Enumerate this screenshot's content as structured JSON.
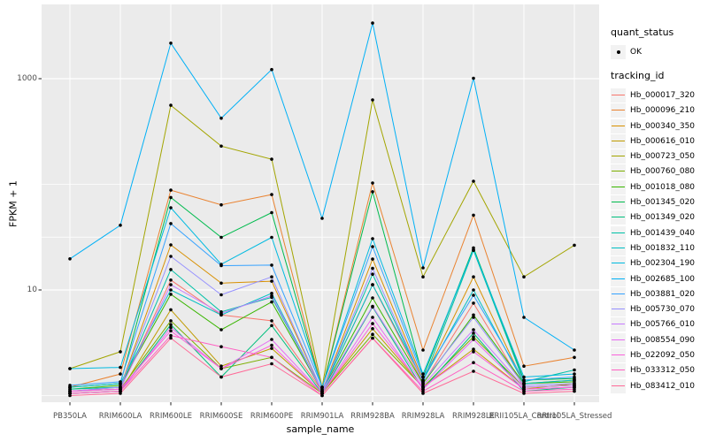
{
  "chart_data": {
    "type": "line",
    "title": "",
    "xlabel": "sample_name",
    "ylabel": "FPKM + 1",
    "y_scale": "log10",
    "ylim": [
      1,
      3800
    ],
    "y_ticks": [
      10,
      1000
    ],
    "y_tick_labels": [
      "10",
      "1000"
    ],
    "grid_minor_values": [
      1,
      31.62,
      100
    ],
    "grid": "on",
    "legend_position": "right",
    "panel_bg": "#EBEBEB",
    "grid_color": "#FFFFFF",
    "point_color": "#000000",
    "tick_color": "#333333",
    "categories": [
      "PB350LA",
      "RRIM600LA",
      "RRIM600LE",
      "RRIM600SE",
      "RRIM600PE",
      "RRIM901LA",
      "RRIM928BA",
      "RRIM928LA",
      "RRIM928LE",
      "RRII105LA_Control",
      "RRII105LA_Stressed"
    ],
    "series": [
      {
        "name": "Hb_000017_320",
        "color": "#F8766D",
        "values": [
          1.1,
          1.15,
          12.4,
          5.8,
          5.1,
          1.1,
          11.2,
          1.3,
          7.5,
          1.2,
          1.25
        ]
      },
      {
        "name": "Hb_000096_210",
        "color": "#EA8331",
        "values": [
          1.2,
          1.6,
          88,
          64,
          80,
          1.15,
          103,
          2.7,
          51,
          1.9,
          2.3
        ]
      },
      {
        "name": "Hb_000340_350",
        "color": "#D89000",
        "values": [
          1.1,
          1.2,
          26.7,
          11.6,
          12.1,
          1.1,
          19.6,
          1.4,
          13.3,
          1.3,
          1.4
        ]
      },
      {
        "name": "Hb_000616_010",
        "color": "#C09B00",
        "values": [
          1.05,
          1.1,
          6.5,
          1.9,
          2.8,
          1.05,
          4.3,
          1.2,
          2.75,
          1.15,
          1.3
        ]
      },
      {
        "name": "Hb_000723_050",
        "color": "#A3A500",
        "values": [
          1.8,
          2.6,
          560,
          230,
          173,
          1.2,
          630,
          13.3,
          107,
          13.3,
          26.5
        ]
      },
      {
        "name": "Hb_000760_080",
        "color": "#7CAE00",
        "values": [
          1.1,
          1.15,
          5.1,
          1.8,
          2.3,
          1.05,
          3.8,
          1.2,
          3.6,
          1.2,
          1.25
        ]
      },
      {
        "name": "Hb_001018_080",
        "color": "#39B600",
        "values": [
          1.15,
          1.25,
          9.1,
          4.2,
          7.7,
          1.1,
          8.4,
          1.3,
          5.8,
          1.3,
          1.35
        ]
      },
      {
        "name": "Hb_001345_020",
        "color": "#00BB4E",
        "values": [
          1.2,
          1.3,
          75,
          31.5,
          54,
          1.15,
          85,
          1.5,
          25,
          1.4,
          1.45
        ]
      },
      {
        "name": "Hb_001349_020",
        "color": "#00BF7D",
        "values": [
          1.05,
          1.1,
          4.7,
          1.5,
          4.6,
          1.05,
          6.9,
          1.15,
          3.9,
          1.1,
          1.2
        ]
      },
      {
        "name": "Hb_001439_040",
        "color": "#00C1A7",
        "values": [
          1.15,
          1.2,
          15.6,
          6.2,
          8.5,
          1.1,
          14.1,
          1.35,
          23.7,
          1.35,
          1.75
        ]
      },
      {
        "name": "Hb_001832_110",
        "color": "#00BFC4",
        "values": [
          1.2,
          1.3,
          10,
          5.8,
          9.3,
          1.1,
          11.2,
          1.4,
          10,
          1.3,
          1.4
        ]
      },
      {
        "name": "Hb_002304_190",
        "color": "#00BAE0",
        "values": [
          1.8,
          1.85,
          60,
          17.5,
          31.5,
          1.2,
          30.6,
          1.6,
          24,
          1.5,
          1.6
        ]
      },
      {
        "name": "Hb_002685_100",
        "color": "#00B0F6",
        "values": [
          19.7,
          41,
          2170,
          423,
          1220,
          47.6,
          3360,
          16.2,
          1010,
          5.5,
          2.7
        ]
      },
      {
        "name": "Hb_003881_020",
        "color": "#35A2FF",
        "values": [
          1.25,
          1.35,
          42.5,
          17,
          17.2,
          1.2,
          25.7,
          1.5,
          8.9,
          1.4,
          1.5
        ]
      },
      {
        "name": "Hb_005730_070",
        "color": "#9590FF",
        "values": [
          1.1,
          1.2,
          20.8,
          9.0,
          13.3,
          1.1,
          16.0,
          1.35,
          5.5,
          1.25,
          1.3
        ]
      },
      {
        "name": "Hb_005766_010",
        "color": "#C77CFF",
        "values": [
          1.1,
          1.15,
          11.2,
          6.0,
          8.8,
          1.1,
          7.0,
          1.25,
          4.2,
          1.2,
          1.25
        ]
      },
      {
        "name": "Hb_008554_090",
        "color": "#E76BF3",
        "values": [
          1.05,
          1.1,
          4.4,
          1.8,
          3.4,
          1.05,
          5.5,
          1.15,
          3.4,
          1.15,
          1.2
        ]
      },
      {
        "name": "Hb_022092_050",
        "color": "#FA62DB",
        "values": [
          1.1,
          1.15,
          4.1,
          1.8,
          3.0,
          1.05,
          4.8,
          1.2,
          2.6,
          1.15,
          1.2
        ]
      },
      {
        "name": "Hb_033312_050",
        "color": "#FF61C3",
        "values": [
          1.05,
          1.1,
          3.7,
          2.9,
          2.3,
          1.0,
          3.5,
          1.1,
          2.05,
          1.1,
          1.15
        ]
      },
      {
        "name": "Hb_083412_010",
        "color": "#FF6A98",
        "values": [
          1.0,
          1.05,
          3.5,
          1.5,
          2.0,
          1.0,
          3.5,
          1.05,
          1.7,
          1.05,
          1.1
        ]
      }
    ]
  },
  "legend": {
    "quant_status": {
      "title": "quant_status",
      "items": [
        {
          "label": "OK",
          "symbol": "point"
        }
      ]
    },
    "tracking_id": {
      "title": "tracking_id"
    }
  }
}
